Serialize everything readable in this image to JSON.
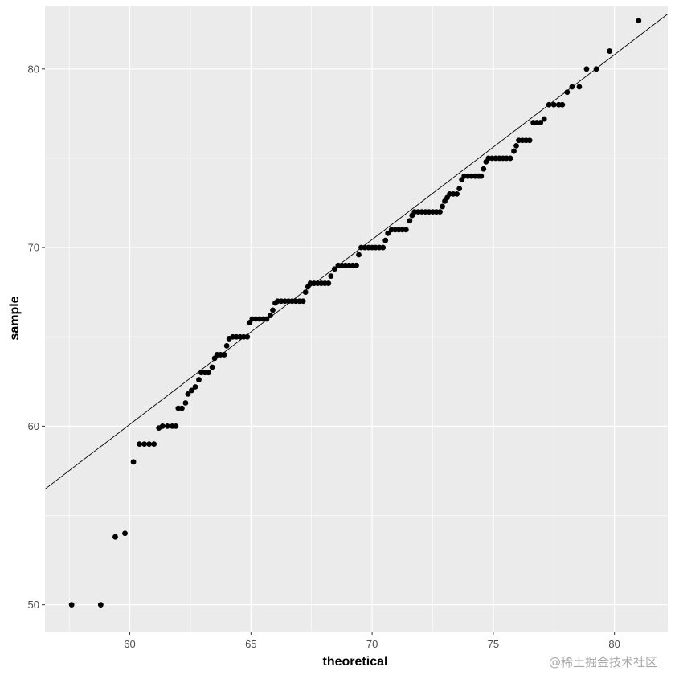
{
  "chart_data": {
    "type": "scatter",
    "subtype": "qq-plot",
    "xlabel": "theoretical",
    "ylabel": "sample",
    "xlim": [
      56.5,
      82.2
    ],
    "ylim": [
      48.5,
      83.5
    ],
    "x_ticks": [
      60,
      65,
      70,
      75,
      80
    ],
    "y_ticks": [
      50,
      60,
      70,
      80
    ],
    "grid": true,
    "background": "#ebebeb",
    "grid_color": "#ffffff",
    "point_color": "#000000",
    "reference_line": {
      "slope": 1.035,
      "intercept": -2.0,
      "color": "#000000"
    },
    "points": [
      {
        "x": 57.6,
        "y": 50
      },
      {
        "x": 58.8,
        "y": 50
      },
      {
        "x": 59.4,
        "y": 53.8
      },
      {
        "x": 59.8,
        "y": 54
      },
      {
        "x": 60.15,
        "y": 58
      },
      {
        "x": 60.4,
        "y": 59
      },
      {
        "x": 60.6,
        "y": 59
      },
      {
        "x": 60.8,
        "y": 59
      },
      {
        "x": 61.0,
        "y": 59
      },
      {
        "x": 61.2,
        "y": 59.9
      },
      {
        "x": 61.35,
        "y": 60
      },
      {
        "x": 61.55,
        "y": 60
      },
      {
        "x": 61.75,
        "y": 60
      },
      {
        "x": 61.9,
        "y": 60
      },
      {
        "x": 62.0,
        "y": 61
      },
      {
        "x": 62.15,
        "y": 61
      },
      {
        "x": 62.3,
        "y": 61.3
      },
      {
        "x": 62.4,
        "y": 61.8
      },
      {
        "x": 62.55,
        "y": 62
      },
      {
        "x": 62.7,
        "y": 62.2
      },
      {
        "x": 62.85,
        "y": 62.6
      },
      {
        "x": 62.95,
        "y": 63
      },
      {
        "x": 63.1,
        "y": 63
      },
      {
        "x": 63.25,
        "y": 63
      },
      {
        "x": 63.4,
        "y": 63.3
      },
      {
        "x": 63.5,
        "y": 63.8
      },
      {
        "x": 63.6,
        "y": 64
      },
      {
        "x": 63.75,
        "y": 64
      },
      {
        "x": 63.9,
        "y": 64
      },
      {
        "x": 64.0,
        "y": 64.5
      },
      {
        "x": 64.1,
        "y": 64.9
      },
      {
        "x": 64.25,
        "y": 65
      },
      {
        "x": 64.4,
        "y": 65
      },
      {
        "x": 64.55,
        "y": 65
      },
      {
        "x": 64.7,
        "y": 65
      },
      {
        "x": 64.85,
        "y": 65
      },
      {
        "x": 64.95,
        "y": 65.8
      },
      {
        "x": 65.05,
        "y": 66
      },
      {
        "x": 65.2,
        "y": 66
      },
      {
        "x": 65.35,
        "y": 66
      },
      {
        "x": 65.5,
        "y": 66
      },
      {
        "x": 65.65,
        "y": 66
      },
      {
        "x": 65.8,
        "y": 66.2
      },
      {
        "x": 65.9,
        "y": 66.5
      },
      {
        "x": 66.0,
        "y": 66.9
      },
      {
        "x": 66.1,
        "y": 67
      },
      {
        "x": 66.25,
        "y": 67
      },
      {
        "x": 66.4,
        "y": 67
      },
      {
        "x": 66.55,
        "y": 67
      },
      {
        "x": 66.7,
        "y": 67
      },
      {
        "x": 66.85,
        "y": 67
      },
      {
        "x": 67.0,
        "y": 67
      },
      {
        "x": 67.15,
        "y": 67
      },
      {
        "x": 67.25,
        "y": 67.5
      },
      {
        "x": 67.35,
        "y": 67.8
      },
      {
        "x": 67.45,
        "y": 68
      },
      {
        "x": 67.6,
        "y": 68
      },
      {
        "x": 67.75,
        "y": 68
      },
      {
        "x": 67.9,
        "y": 68
      },
      {
        "x": 68.05,
        "y": 68
      },
      {
        "x": 68.2,
        "y": 68
      },
      {
        "x": 68.3,
        "y": 68.4
      },
      {
        "x": 68.45,
        "y": 68.8
      },
      {
        "x": 68.6,
        "y": 69
      },
      {
        "x": 68.75,
        "y": 69
      },
      {
        "x": 68.9,
        "y": 69
      },
      {
        "x": 69.05,
        "y": 69
      },
      {
        "x": 69.2,
        "y": 69
      },
      {
        "x": 69.35,
        "y": 69
      },
      {
        "x": 69.45,
        "y": 69.6
      },
      {
        "x": 69.55,
        "y": 70
      },
      {
        "x": 69.7,
        "y": 70
      },
      {
        "x": 69.85,
        "y": 70
      },
      {
        "x": 70.0,
        "y": 70
      },
      {
        "x": 70.15,
        "y": 70
      },
      {
        "x": 70.3,
        "y": 70
      },
      {
        "x": 70.45,
        "y": 70
      },
      {
        "x": 70.55,
        "y": 70.4
      },
      {
        "x": 70.65,
        "y": 70.8
      },
      {
        "x": 70.8,
        "y": 71
      },
      {
        "x": 70.95,
        "y": 71
      },
      {
        "x": 71.1,
        "y": 71
      },
      {
        "x": 71.25,
        "y": 71
      },
      {
        "x": 71.4,
        "y": 71
      },
      {
        "x": 71.55,
        "y": 71.5
      },
      {
        "x": 71.65,
        "y": 71.8
      },
      {
        "x": 71.75,
        "y": 72
      },
      {
        "x": 71.9,
        "y": 72
      },
      {
        "x": 72.05,
        "y": 72
      },
      {
        "x": 72.2,
        "y": 72
      },
      {
        "x": 72.35,
        "y": 72
      },
      {
        "x": 72.5,
        "y": 72
      },
      {
        "x": 72.65,
        "y": 72
      },
      {
        "x": 72.8,
        "y": 72
      },
      {
        "x": 72.9,
        "y": 72.3
      },
      {
        "x": 73.0,
        "y": 72.6
      },
      {
        "x": 73.1,
        "y": 72.8
      },
      {
        "x": 73.2,
        "y": 73
      },
      {
        "x": 73.35,
        "y": 73
      },
      {
        "x": 73.5,
        "y": 73
      },
      {
        "x": 73.6,
        "y": 73.3
      },
      {
        "x": 73.7,
        "y": 73.8
      },
      {
        "x": 73.8,
        "y": 74
      },
      {
        "x": 73.95,
        "y": 74
      },
      {
        "x": 74.1,
        "y": 74
      },
      {
        "x": 74.25,
        "y": 74
      },
      {
        "x": 74.4,
        "y": 74
      },
      {
        "x": 74.5,
        "y": 74
      },
      {
        "x": 74.6,
        "y": 74.4
      },
      {
        "x": 74.7,
        "y": 74.8
      },
      {
        "x": 74.8,
        "y": 75
      },
      {
        "x": 74.95,
        "y": 75
      },
      {
        "x": 75.1,
        "y": 75
      },
      {
        "x": 75.25,
        "y": 75
      },
      {
        "x": 75.4,
        "y": 75
      },
      {
        "x": 75.55,
        "y": 75
      },
      {
        "x": 75.7,
        "y": 75
      },
      {
        "x": 75.85,
        "y": 75.4
      },
      {
        "x": 75.95,
        "y": 75.7
      },
      {
        "x": 76.05,
        "y": 76
      },
      {
        "x": 76.2,
        "y": 76
      },
      {
        "x": 76.35,
        "y": 76
      },
      {
        "x": 76.5,
        "y": 76
      },
      {
        "x": 76.65,
        "y": 77
      },
      {
        "x": 76.8,
        "y": 77
      },
      {
        "x": 76.95,
        "y": 77
      },
      {
        "x": 77.1,
        "y": 77.2
      },
      {
        "x": 77.3,
        "y": 78
      },
      {
        "x": 77.5,
        "y": 78
      },
      {
        "x": 77.7,
        "y": 78
      },
      {
        "x": 77.85,
        "y": 78
      },
      {
        "x": 78.05,
        "y": 78.7
      },
      {
        "x": 78.25,
        "y": 79
      },
      {
        "x": 78.55,
        "y": 79
      },
      {
        "x": 78.85,
        "y": 80
      },
      {
        "x": 79.25,
        "y": 80
      },
      {
        "x": 79.8,
        "y": 81
      },
      {
        "x": 81.0,
        "y": 82.7
      }
    ]
  },
  "watermark": "@稀土掘金技术社区"
}
